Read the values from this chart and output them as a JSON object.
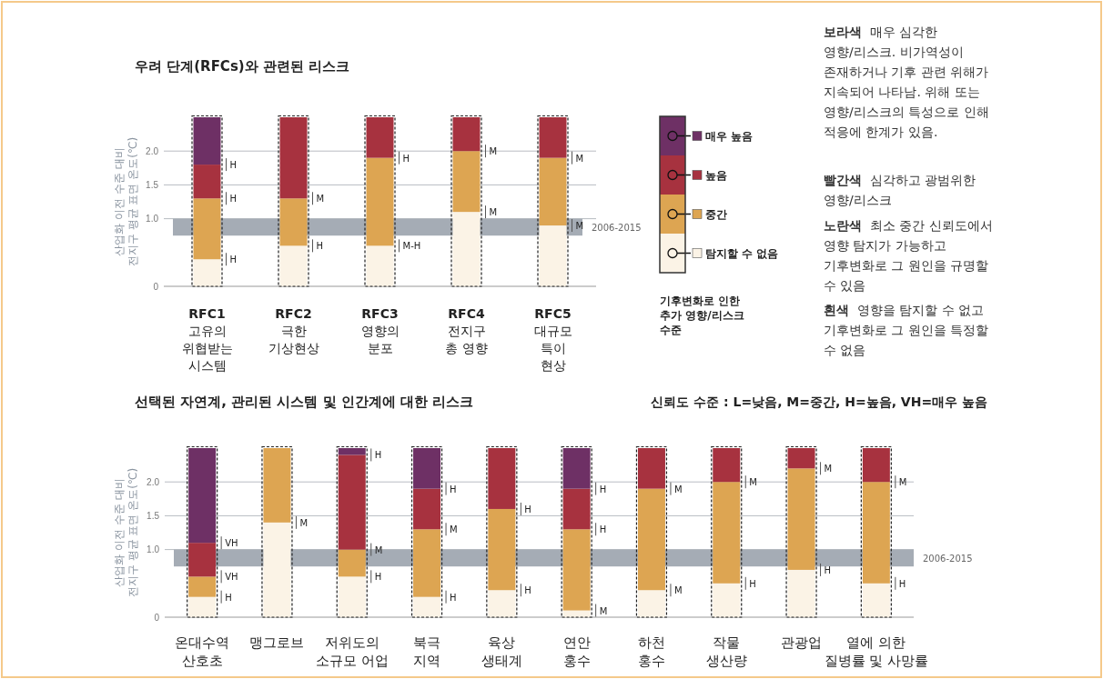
{
  "chart_data": [
    {
      "type": "bar",
      "stacked": true,
      "title": "우려 단계(RFCs)와 관련된 리스크",
      "ylabel": "산업화 이전 수준 대비\n전지구 평균 표면 온도(℃)",
      "categories": [
        "RFC1\n고유의\n위협받는\n시스템",
        "RFC2\n극한\n기상현상",
        "RFC3\n영향의\n분포",
        "RFC4\n전지구\n총 영향",
        "RFC5\n대규모\n특이\n현상"
      ],
      "series": [
        {
          "name": "탐지할 수 없음",
          "color": "#fbf3e6",
          "values": [
            0.4,
            0.6,
            0.6,
            1.1,
            0.9
          ]
        },
        {
          "name": "중간",
          "color": "#dda552",
          "values": [
            0.9,
            0.7,
            1.3,
            0.9,
            1.0
          ]
        },
        {
          "name": "높음",
          "color": "#a7323f",
          "values": [
            0.5,
            1.2,
            0.6,
            0.5,
            0.6
          ]
        },
        {
          "name": "매우 높음",
          "color": "#6e3065",
          "values": [
            0.7,
            0,
            0,
            0,
            0
          ]
        }
      ],
      "ylim": [
        0,
        2.5
      ],
      "yticks": [
        0,
        {
          "value": 1,
          "label": "1.0"
        },
        {
          "value": 1.5,
          "label": "1.5"
        },
        {
          "value": 2,
          "label": "2.0"
        }
      ],
      "grid": "y",
      "legend": "right",
      "legend_title": "기후변화로 인한 추가 영향/리스크 수준",
      "bands": [
        {
          "axis": "y",
          "from": 0.75,
          "to": 1.0,
          "label": "2006-2015",
          "color": "#a5acb5"
        }
      ],
      "annotations": [
        {
          "text": "H",
          "x": "RFC1\n고유의\n위협받는\n시스템",
          "y": 1.8
        },
        {
          "text": "H",
          "x": "RFC1\n고유의\n위협받는\n시스템",
          "y": 1.3
        },
        {
          "text": "H",
          "x": "RFC1\n고유의\n위협받는\n시스템",
          "y": 0.4
        },
        {
          "text": "M",
          "x": "RFC2\n극한\n기상현상",
          "y": 1.3
        },
        {
          "text": "H",
          "x": "RFC2\n극한\n기상현상",
          "y": 0.6
        },
        {
          "text": "H",
          "x": "RFC3\n영향의\n분포",
          "y": 1.9
        },
        {
          "text": "M-H",
          "x": "RFC3\n영향의\n분포",
          "y": 0.6
        },
        {
          "text": "M",
          "x": "RFC4\n전지구\n총 영향",
          "y": 2.0
        },
        {
          "text": "M",
          "x": "RFC4\n전지구\n총 영향",
          "y": 1.1
        },
        {
          "text": "M",
          "x": "RFC5\n대규모\n특이\n현상",
          "y": 1.9
        },
        {
          "text": "M",
          "x": "RFC5\n대규모\n특이\n현상",
          "y": 0.9
        },
        "보라색 매우 심각한 영향/리스크. 비가역성이 존재하거나 기후 관련 위해가 지속되어 나타남. 위해 또는 영향/리스크의 특성으로 인해 적응에 한계가 있음.",
        "빨간색 심각하고 광범위한 영향/리스크",
        "노란색 최소 중간 신뢰도에서 영향 탐지가 가능하고 기후변화로 그 원인을 규명할 수 있음",
        "흰색 영향을 탐지할 수 없고 기후변화로 그 원인을 특정할 수 없음"
      ]
    },
    {
      "type": "bar",
      "stacked": true,
      "title": "선택된 자연계, 관리된 시스템 및 인간계에 대한 리스크",
      "ylabel": "산업화 이전 수준 대비\n전지구 평균 표면 온도(℃)",
      "categories": [
        "온대수역\n산호초",
        "맹그로브",
        "저위도의\n소규모 어업",
        "북극\n지역",
        "육상\n생태계",
        "연안\n홍수",
        "하천\n홍수",
        "작물\n생산량",
        "관광업",
        "열에 의한\n질병률 및 사망률"
      ],
      "series": [
        {
          "color": "#fbf3e6",
          "values": [
            0.3,
            1.4,
            0.6,
            0.3,
            0.4,
            0.1,
            0.4,
            0.5,
            0.7,
            0.5
          ]
        },
        {
          "color": "#dda552",
          "values": [
            0.3,
            1.1,
            0.4,
            1.0,
            1.2,
            1.2,
            1.5,
            1.5,
            1.5,
            1.5
          ]
        },
        {
          "color": "#a7323f",
          "values": [
            0.5,
            0,
            1.4,
            0.6,
            0.9,
            0.6,
            0.6,
            0.5,
            0.3,
            0.5
          ]
        },
        {
          "color": "#6e3065",
          "values": [
            1.4,
            0,
            0.1,
            0.6,
            0,
            0.6,
            0,
            0,
            0,
            0
          ]
        }
      ],
      "ylim": [
        0,
        2.5
      ],
      "yticks": [
        0,
        {
          "value": 1,
          "label": "1.0"
        },
        {
          "value": 1.5,
          "label": "1.5"
        },
        {
          "value": 2,
          "label": "2.0"
        }
      ],
      "grid": "y",
      "bands": [
        {
          "axis": "y",
          "from": 0.75,
          "to": 1.0,
          "label": "2006-2015",
          "color": "#a5acb5"
        }
      ],
      "annotations": [
        {
          "text": "VH",
          "x": "온대수역\n산호초",
          "y": 1.1
        },
        {
          "text": "VH",
          "x": "온대수역\n산호초",
          "y": 0.6
        },
        {
          "text": "H",
          "x": "온대수역\n산호초",
          "y": 0.3
        },
        {
          "text": "M",
          "x": "맹그로브",
          "y": 1.4
        },
        {
          "text": "H",
          "x": "저위도의\n소규모 어업",
          "y": 2.4
        },
        {
          "text": "M",
          "x": "저위도의\n소규모 어업",
          "y": 1.0
        },
        {
          "text": "H",
          "x": "저위도의\n소규모 어업",
          "y": 0.6
        },
        {
          "text": "H",
          "x": "북극\n지역",
          "y": 1.9
        },
        {
          "text": "M",
          "x": "북극\n지역",
          "y": 1.3
        },
        {
          "text": "H",
          "x": "북극\n지역",
          "y": 0.3
        },
        {
          "text": "H",
          "x": "육상\n생태계",
          "y": 1.6
        },
        {
          "text": "H",
          "x": "육상\n생태계",
          "y": 0.4
        },
        {
          "text": "H",
          "x": "연안\n홍수",
          "y": 1.9
        },
        {
          "text": "H",
          "x": "연안\n홍수",
          "y": 1.3
        },
        {
          "text": "M",
          "x": "연안\n홍수",
          "y": 0.1
        },
        {
          "text": "M",
          "x": "하천\n홍수",
          "y": 1.9
        },
        {
          "text": "M",
          "x": "하천\n홍수",
          "y": 0.4
        },
        {
          "text": "M",
          "x": "작물\n생산량",
          "y": 2.0
        },
        {
          "text": "H",
          "x": "작물\n생산량",
          "y": 0.5
        },
        {
          "text": "M",
          "x": "관광업",
          "y": 2.2
        },
        {
          "text": "H",
          "x": "관광업",
          "y": 0.7
        },
        {
          "text": "M",
          "x": "열에 의한\n질병률 및 사망률",
          "y": 2.0
        },
        {
          "text": "H",
          "x": "열에 의한\n질병률 및 사망률",
          "y": 0.5
        },
        "신뢰도 수준 : L=낮음, M=중간, H=높음, VH=매우 높음"
      ]
    }
  ]
}
